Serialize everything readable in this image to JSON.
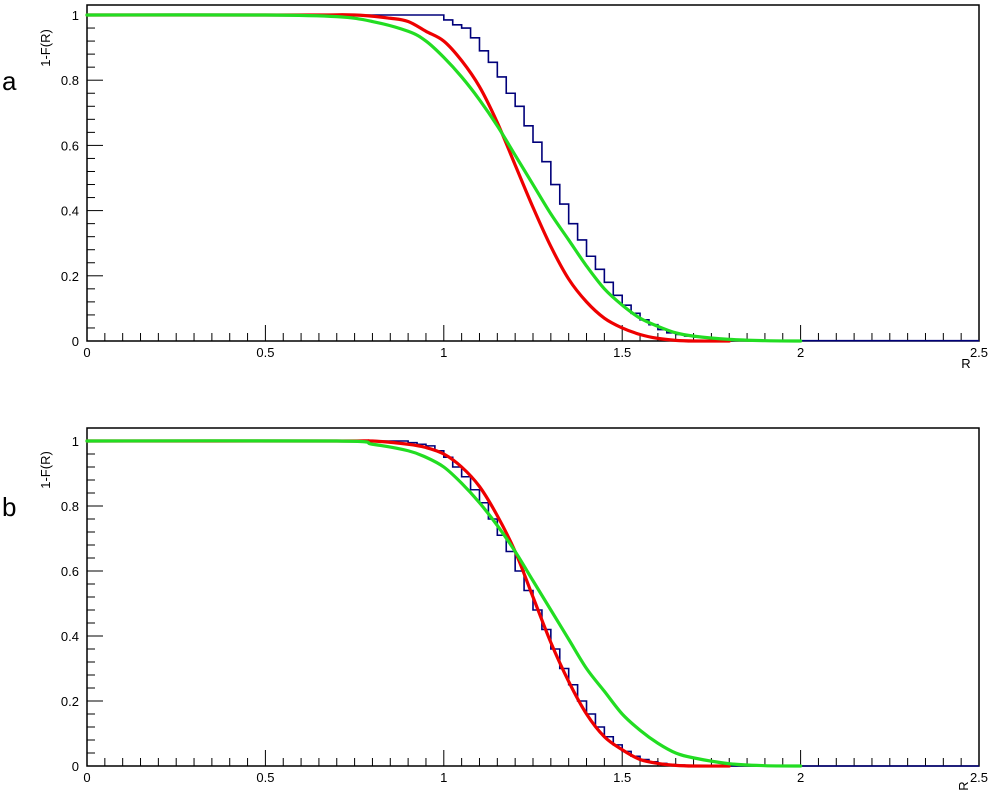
{
  "panels": [
    {
      "letter": "a"
    },
    {
      "letter": "b"
    }
  ],
  "chart_data": [
    {
      "type": "line",
      "title": "",
      "xlabel": "R",
      "ylabel": "1-F(R)",
      "xlim": [
        0,
        2.5
      ],
      "ylim": [
        0,
        1.0
      ],
      "x_ticks": [
        "0",
        "0.5",
        "1",
        "1.5",
        "2",
        "2.5"
      ],
      "y_ticks": [
        "0",
        "0.2",
        "0.4",
        "0.6",
        "0.8",
        "1"
      ],
      "grid": false,
      "legend": "none",
      "histogram": {
        "name": "",
        "color": "#00007a",
        "bin_width": 0.025,
        "x_start": 0,
        "values": [
          1,
          1,
          1,
          1,
          1,
          1,
          1,
          1,
          1,
          1,
          1,
          1,
          1,
          1,
          1,
          1,
          1,
          1,
          1,
          1,
          1,
          1,
          1,
          1,
          1,
          1,
          1,
          1,
          1,
          1,
          1,
          1,
          1,
          1,
          1,
          1,
          1,
          1,
          1,
          1,
          0.985,
          0.97,
          0.96,
          0.93,
          0.89,
          0.855,
          0.81,
          0.76,
          0.72,
          0.66,
          0.61,
          0.55,
          0.48,
          0.42,
          0.36,
          0.31,
          0.26,
          0.22,
          0.18,
          0.14,
          0.11,
          0.085,
          0.065,
          0.05,
          0.035,
          0.025,
          0.02,
          0.015,
          0.012,
          0.01,
          0.008,
          0.006,
          0.005,
          0.004,
          0.003,
          0.002,
          0.002,
          0.002,
          0.001,
          0.001,
          0.001,
          0.001,
          0.001,
          0.001,
          0.001,
          0.001,
          0.001,
          0.001,
          0.001,
          0.001,
          0.001,
          0.001,
          0.001,
          0.001,
          0.001,
          0.001,
          0.001,
          0.001,
          0.001,
          0.001
        ]
      },
      "series": [
        {
          "name": "",
          "color": "#ee0000",
          "x": [
            0,
            0.6,
            0.75,
            0.85,
            0.9,
            0.95,
            1.0,
            1.05,
            1.1,
            1.15,
            1.2,
            1.25,
            1.3,
            1.35,
            1.4,
            1.45,
            1.5,
            1.55,
            1.6,
            1.65,
            1.7,
            1.8
          ],
          "y": [
            1,
            1,
            1,
            0.99,
            0.98,
            0.95,
            0.92,
            0.86,
            0.78,
            0.67,
            0.54,
            0.41,
            0.29,
            0.19,
            0.12,
            0.07,
            0.04,
            0.02,
            0.008,
            0.002,
            0.0,
            0.0
          ]
        },
        {
          "name": "",
          "color": "#22dd22",
          "x": [
            0,
            0.5,
            0.7,
            0.8,
            0.9,
            0.95,
            1.0,
            1.05,
            1.1,
            1.15,
            1.2,
            1.25,
            1.3,
            1.35,
            1.4,
            1.45,
            1.5,
            1.55,
            1.6,
            1.65,
            1.7,
            1.8,
            1.9,
            2.0
          ],
          "y": [
            1,
            1,
            0.995,
            0.98,
            0.95,
            0.92,
            0.87,
            0.81,
            0.74,
            0.66,
            0.57,
            0.48,
            0.39,
            0.31,
            0.23,
            0.16,
            0.11,
            0.07,
            0.045,
            0.025,
            0.015,
            0.005,
            0.001,
            0.0
          ]
        }
      ]
    },
    {
      "type": "line",
      "title": "",
      "xlabel": "R",
      "ylabel": "1-F(R)",
      "xlim": [
        0,
        2.5
      ],
      "ylim": [
        0,
        1.0
      ],
      "x_ticks": [
        "0",
        "0.5",
        "1",
        "1.5",
        "2",
        "2.5"
      ],
      "y_ticks": [
        "0",
        "0.2",
        "0.4",
        "0.6",
        "0.8",
        "1"
      ],
      "grid": false,
      "legend": "none",
      "histogram": {
        "name": "",
        "color": "#00007a",
        "bin_width": 0.025,
        "x_start": 0,
        "values": [
          1,
          1,
          1,
          1,
          1,
          1,
          1,
          1,
          1,
          1,
          1,
          1,
          1,
          1,
          1,
          1,
          1,
          1,
          1,
          1,
          1,
          1,
          1,
          1,
          1,
          1,
          1,
          1,
          1,
          1,
          1,
          1,
          1,
          1,
          1,
          1,
          0.995,
          0.99,
          0.985,
          0.97,
          0.95,
          0.92,
          0.89,
          0.85,
          0.81,
          0.76,
          0.71,
          0.66,
          0.6,
          0.54,
          0.48,
          0.42,
          0.36,
          0.3,
          0.25,
          0.2,
          0.16,
          0.12,
          0.09,
          0.065,
          0.045,
          0.03,
          0.02,
          0.013,
          0.008,
          0.005,
          0.003,
          0.002,
          0.001,
          0.0005,
          0,
          0,
          0,
          0,
          0,
          0,
          0,
          0,
          0,
          0,
          0,
          0,
          0,
          0,
          0,
          0,
          0,
          0,
          0,
          0,
          0,
          0,
          0,
          0,
          0,
          0,
          0,
          0,
          0,
          0
        ]
      },
      "series": [
        {
          "name": "",
          "color": "#ee0000",
          "x": [
            0,
            0.7,
            0.8,
            0.9,
            0.95,
            1.0,
            1.05,
            1.1,
            1.15,
            1.2,
            1.25,
            1.3,
            1.35,
            1.4,
            1.45,
            1.5,
            1.55,
            1.6,
            1.65,
            1.7,
            1.8
          ],
          "y": [
            1,
            1,
            1,
            0.99,
            0.98,
            0.96,
            0.92,
            0.86,
            0.77,
            0.66,
            0.52,
            0.38,
            0.26,
            0.16,
            0.09,
            0.05,
            0.02,
            0.008,
            0.002,
            0.0,
            0.0
          ]
        },
        {
          "name": "",
          "color": "#22dd22",
          "x": [
            0,
            0.7,
            0.8,
            0.9,
            0.95,
            1.0,
            1.05,
            1.1,
            1.15,
            1.2,
            1.25,
            1.3,
            1.35,
            1.4,
            1.45,
            1.5,
            1.55,
            1.6,
            1.65,
            1.7,
            1.8,
            1.9,
            2.0
          ],
          "y": [
            1,
            1,
            0.99,
            0.97,
            0.95,
            0.92,
            0.87,
            0.81,
            0.74,
            0.66,
            0.57,
            0.48,
            0.39,
            0.3,
            0.23,
            0.16,
            0.11,
            0.07,
            0.04,
            0.025,
            0.007,
            0.001,
            0.0
          ]
        }
      ]
    }
  ]
}
